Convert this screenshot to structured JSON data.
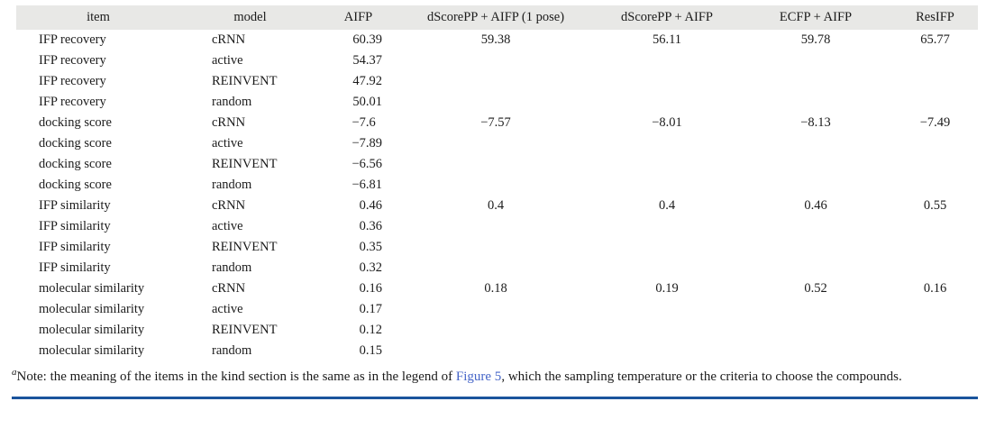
{
  "table": {
    "columns": [
      {
        "id": "item",
        "label": "item",
        "align": "left"
      },
      {
        "id": "model",
        "label": "model",
        "align": "left"
      },
      {
        "id": "aifp",
        "label": "AIFP",
        "align": "right",
        "pad_decimals": 2
      },
      {
        "id": "dscorepp-aifp-1pose",
        "label": "dScorePP + AIFP (1 pose)",
        "align": "center"
      },
      {
        "id": "dscorepp-aifp",
        "label": "dScorePP + AIFP",
        "align": "center"
      },
      {
        "id": "ecfp-aifp",
        "label": "ECFP + AIFP",
        "align": "center"
      },
      {
        "id": "resifp",
        "label": "ResIFP",
        "align": "center"
      }
    ],
    "rows": [
      [
        "IFP recovery",
        "cRNN",
        "60.39",
        "59.38",
        "56.11",
        "59.78",
        "65.77"
      ],
      [
        "IFP recovery",
        "active",
        "54.37",
        "",
        "",
        "",
        ""
      ],
      [
        "IFP recovery",
        "REINVENT",
        "47.92",
        "",
        "",
        "",
        ""
      ],
      [
        "IFP recovery",
        "random",
        "50.01",
        "",
        "",
        "",
        ""
      ],
      [
        "docking score",
        "cRNN",
        "−7.6",
        "−7.57",
        "−8.01",
        "−8.13",
        "−7.49"
      ],
      [
        "docking score",
        "active",
        "−7.89",
        "",
        "",
        "",
        ""
      ],
      [
        "docking score",
        "REINVENT",
        "−6.56",
        "",
        "",
        "",
        ""
      ],
      [
        "docking score",
        "random",
        "−6.81",
        "",
        "",
        "",
        ""
      ],
      [
        "IFP similarity",
        "cRNN",
        "0.46",
        "0.4",
        "0.4",
        "0.46",
        "0.55"
      ],
      [
        "IFP similarity",
        "active",
        "0.36",
        "",
        "",
        "",
        ""
      ],
      [
        "IFP similarity",
        "REINVENT",
        "0.35",
        "",
        "",
        "",
        ""
      ],
      [
        "IFP similarity",
        "random",
        "0.32",
        "",
        "",
        "",
        ""
      ],
      [
        "molecular similarity",
        "cRNN",
        "0.16",
        "0.18",
        "0.19",
        "0.52",
        "0.16"
      ],
      [
        "molecular similarity",
        "active",
        "0.17",
        "",
        "",
        "",
        ""
      ],
      [
        "molecular similarity",
        "REINVENT",
        "0.12",
        "",
        "",
        "",
        ""
      ],
      [
        "molecular similarity",
        "random",
        "0.15",
        "",
        "",
        "",
        ""
      ]
    ]
  },
  "footnote": {
    "marker": "a",
    "text_before_link": "Note: the meaning of the items in the kind section is the same as in the legend of ",
    "link_text": "Figure 5",
    "text_after_link": ", which the sampling temperature or the criteria to choose the compounds."
  },
  "colors": {
    "header_band": "#e8e8e6",
    "text": "#1b1b1b",
    "link": "#4565c8",
    "bottom_rule": "#1a549c"
  }
}
